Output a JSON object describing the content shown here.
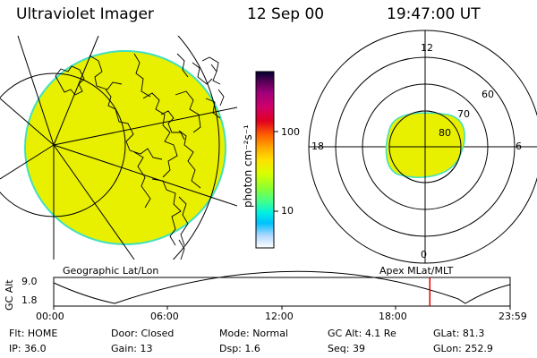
{
  "header": {
    "instrument": "Ultraviolet Imager",
    "date": "12 Sep 00",
    "time": "19:47:00 UT"
  },
  "colorbar": {
    "unit_label": "photon cm⁻²s⁻¹",
    "tick_labels": [
      "100",
      "10"
    ],
    "colors": [
      "#000030",
      "#5a0058",
      "#a0007a",
      "#d0006a",
      "#e00020",
      "#ff6000",
      "#ffa800",
      "#ffe000",
      "#d8ff00",
      "#8cff30",
      "#40ff90",
      "#00f0e0",
      "#00c0ff",
      "#b0d8ff",
      "#ffffff"
    ]
  },
  "polar_plot": {
    "mlt_labels": {
      "top": "12",
      "left": "18",
      "right": "6",
      "bottom": "0"
    },
    "lat_labels": [
      "60",
      "70",
      "80"
    ]
  },
  "timeline": {
    "title_left": "Geographic Lat/Lon",
    "title_right": "Apex MLat/MLT",
    "axis_label": "GC Alt",
    "y_ticks": [
      "9.0",
      "1.8"
    ],
    "x_ticks": [
      "00:00",
      "06:00",
      "12:00",
      "18:00",
      "23:59"
    ],
    "current_time_fraction": 0.824
  },
  "status": {
    "row1": [
      {
        "label": "Flt:",
        "value": "HOME"
      },
      {
        "label": "Door:",
        "value": "Closed"
      },
      {
        "label": "Mode:",
        "value": "Normal"
      },
      {
        "label": "GC Alt:",
        "value": "4.1 Re"
      },
      {
        "label": "GLat:",
        "value": "81.3"
      }
    ],
    "row2": [
      {
        "label": "IP:",
        "value": "36.0"
      },
      {
        "label": "Gain:",
        "value": "13"
      },
      {
        "label": "Dsp:",
        "value": "1.6"
      },
      {
        "label": "Seq:",
        "value": "39"
      },
      {
        "label": "GLon:",
        "value": "252.9"
      }
    ]
  },
  "colors": {
    "image_fill": "#e8f000",
    "image_edge": "#40e0c0",
    "current_time_marker": "#e00000"
  }
}
